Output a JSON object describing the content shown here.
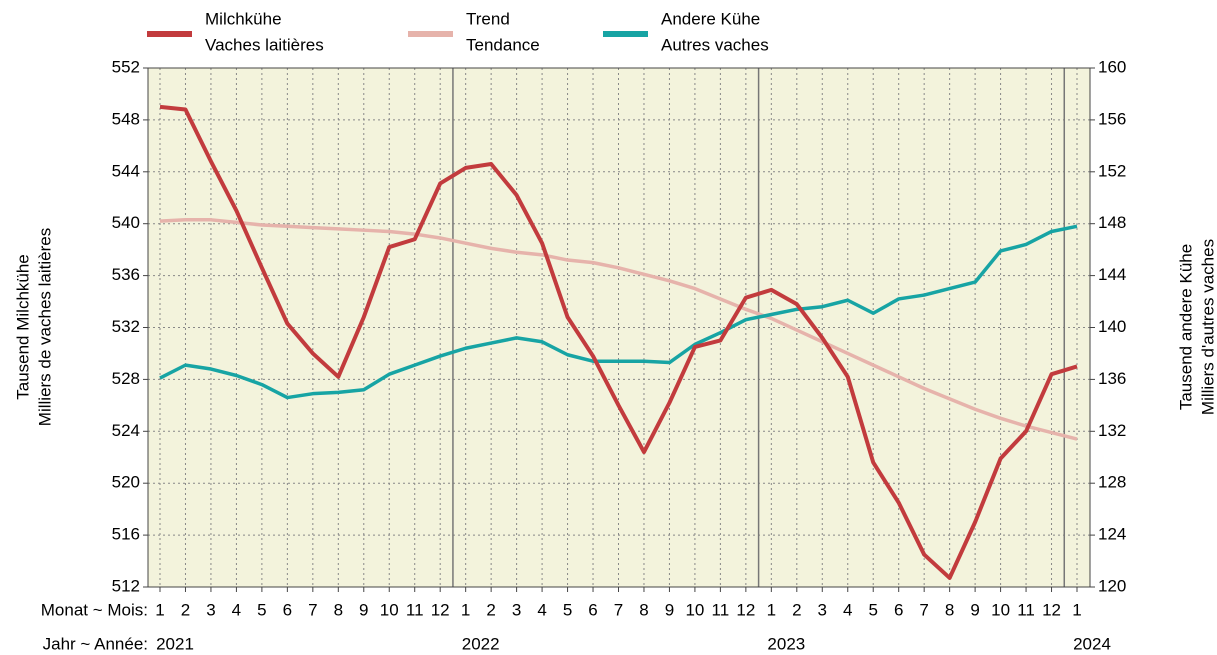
{
  "chart_data": {
    "type": "line",
    "categories": [
      "1",
      "2",
      "3",
      "4",
      "5",
      "6",
      "7",
      "8",
      "9",
      "10",
      "11",
      "12",
      "1",
      "2",
      "3",
      "4",
      "5",
      "6",
      "7",
      "8",
      "9",
      "10",
      "11",
      "12",
      "1",
      "2",
      "3",
      "4",
      "5",
      "6",
      "7",
      "8",
      "9",
      "10",
      "11",
      "12",
      "1"
    ],
    "year_labels": [
      "2021",
      "2022",
      "2023",
      "2024"
    ],
    "x_label_month": "Monat  ~  Mois:",
    "x_label_year": "Jahr  ~  Année:",
    "ylabel": [
      "Tausend Milchkühe",
      "Milliers de vaches laitières"
    ],
    "y2label": [
      "Tausend andere Kühe",
      "Milliers d'autres vaches"
    ],
    "ylim": [
      512,
      552
    ],
    "yticks": [
      512,
      516,
      520,
      524,
      528,
      532,
      536,
      540,
      544,
      548,
      552
    ],
    "y2lim": [
      120,
      160
    ],
    "y2ticks": [
      120,
      124,
      128,
      132,
      136,
      140,
      144,
      148,
      152,
      156,
      160
    ],
    "grid": true,
    "series": [
      {
        "name": [
          "Milchkühe",
          "Vaches laitières"
        ],
        "color": "#c23b3d",
        "values": [
          549,
          548.8,
          544.8,
          541,
          536.6,
          532.3,
          530,
          528.2,
          532.8,
          538.2,
          538.8,
          543.1,
          544.3,
          544.6,
          542.2,
          538.5,
          532.8,
          529.8,
          526,
          522.4,
          526.2,
          530.5,
          531,
          534.3,
          534.9,
          533.8,
          531.2,
          528.2,
          521.6,
          518.5,
          514.5,
          512.7,
          517,
          521.9,
          524,
          528.4,
          529
        ]
      },
      {
        "name": [
          "Trend",
          "Tendance"
        ],
        "color": "#e6b3ab",
        "values": [
          540.2,
          540.3,
          540.3,
          540.1,
          539.9,
          539.8,
          539.7,
          539.6,
          539.5,
          539.4,
          539.2,
          538.9,
          538.5,
          538.1,
          537.8,
          537.6,
          537.2,
          537.0,
          536.6,
          536.1,
          535.6,
          535.0,
          534.2,
          533.4,
          532.7,
          531.8,
          530.9,
          530.0,
          529.1,
          528.2,
          527.3,
          526.5,
          525.7,
          525.0,
          524.4,
          523.9,
          523.4
        ]
      },
      {
        "name": [
          "Andere Kühe",
          "Autres vaches"
        ],
        "color": "#17a4a4",
        "axis": "y2",
        "values": [
          136.1,
          137.1,
          136.8,
          136.3,
          135.6,
          134.6,
          134.9,
          135.0,
          135.2,
          136.4,
          137.1,
          137.8,
          138.4,
          138.8,
          139.2,
          138.9,
          137.9,
          137.4,
          137.4,
          137.4,
          137.3,
          138.7,
          139.6,
          140.6,
          141.0,
          141.4,
          141.6,
          142.1,
          141.1,
          142.2,
          142.5,
          143.0,
          143.5,
          145.9,
          146.4,
          147.4,
          147.8
        ]
      }
    ]
  }
}
